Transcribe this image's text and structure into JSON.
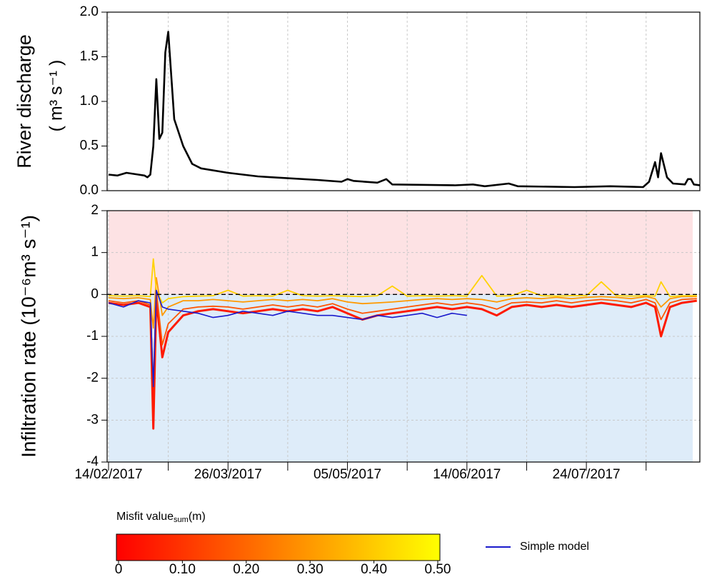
{
  "chart_data": [
    {
      "type": "line",
      "ylabel": "River discharge",
      "yunit": "( m³ s⁻¹ )",
      "x": [
        "2017-02-14",
        "2017-02-17",
        "2017-02-20",
        "2017-02-24",
        "2017-02-26",
        "2017-02-27",
        "2017-02-28",
        "2017-03-01",
        "2017-03-02",
        "2017-03-03",
        "2017-03-04",
        "2017-03-05",
        "2017-03-06",
        "2017-03-08",
        "2017-03-11",
        "2017-03-14",
        "2017-03-17",
        "2017-03-26",
        "2017-04-05",
        "2017-04-10",
        "2017-04-25",
        "2017-05-03",
        "2017-05-05",
        "2017-05-07",
        "2017-05-15",
        "2017-05-18",
        "2017-05-20",
        "2017-06-10",
        "2017-06-16",
        "2017-06-20",
        "2017-06-28",
        "2017-07-01",
        "2017-07-20",
        "2017-08-01",
        "2017-08-12",
        "2017-08-14",
        "2017-08-16",
        "2017-08-17",
        "2017-08-18",
        "2017-08-20",
        "2017-08-22",
        "2017-08-26",
        "2017-08-27",
        "2017-08-28",
        "2017-08-29",
        "2017-08-31"
      ],
      "series": [
        {
          "color": "#000000",
          "values": [
            0.18,
            0.17,
            0.2,
            0.18,
            0.17,
            0.15,
            0.18,
            0.5,
            1.25,
            0.58,
            0.65,
            1.55,
            1.78,
            0.8,
            0.5,
            0.3,
            0.25,
            0.2,
            0.16,
            0.15,
            0.12,
            0.1,
            0.13,
            0.11,
            0.09,
            0.13,
            0.07,
            0.06,
            0.07,
            0.05,
            0.08,
            0.05,
            0.04,
            0.05,
            0.04,
            0.1,
            0.32,
            0.15,
            0.42,
            0.15,
            0.08,
            0.07,
            0.13,
            0.13,
            0.07,
            0.06
          ]
        }
      ],
      "xlim": [
        "2017-02-14",
        "2017-08-31"
      ],
      "xticks": [
        {
          "value": "2017-02-14",
          "label": null
        },
        {
          "value": "2017-03-06",
          "label": null
        },
        {
          "value": "2017-03-26",
          "label": null
        },
        {
          "value": "2017-04-15",
          "label": null
        },
        {
          "value": "2017-05-05",
          "label": null
        },
        {
          "value": "2017-05-25",
          "label": null
        },
        {
          "value": "2017-06-14",
          "label": null
        },
        {
          "value": "2017-07-04",
          "label": null
        },
        {
          "value": "2017-07-24",
          "label": null
        },
        {
          "value": "2017-08-13",
          "label": null
        }
      ],
      "ylim": [
        0,
        2
      ],
      "yticks": [
        {
          "value": 0,
          "label": "0.0"
        },
        {
          "value": 0.5,
          "label": "0.5"
        },
        {
          "value": 1,
          "label": "1.0"
        },
        {
          "value": 1.5,
          "label": "1.5"
        },
        {
          "value": 2,
          "label": "2.0"
        }
      ],
      "grid": "x"
    },
    {
      "type": "line",
      "ylabel": "Infiltration rate (10⁻⁶m³ s⁻¹)",
      "x": [
        "2017-02-14",
        "2017-02-19",
        "2017-02-24",
        "2017-02-28",
        "2017-03-01",
        "2017-03-02",
        "2017-03-04",
        "2017-03-06",
        "2017-03-11",
        "2017-03-16",
        "2017-03-21",
        "2017-03-26",
        "2017-03-31",
        "2017-04-05",
        "2017-04-10",
        "2017-04-15",
        "2017-04-20",
        "2017-04-25",
        "2017-04-30",
        "2017-05-05",
        "2017-05-10",
        "2017-05-15",
        "2017-05-20",
        "2017-05-25",
        "2017-05-30",
        "2017-06-04",
        "2017-06-09",
        "2017-06-14",
        "2017-06-19",
        "2017-06-24",
        "2017-06-29",
        "2017-07-04",
        "2017-07-09",
        "2017-07-14",
        "2017-07-19",
        "2017-07-24",
        "2017-07-29",
        "2017-08-03",
        "2017-08-08",
        "2017-08-13",
        "2017-08-16",
        "2017-08-18",
        "2017-08-21",
        "2017-08-25",
        "2017-08-30"
      ],
      "series": [
        {
          "color": "#ff1a00",
          "values": [
            -0.2,
            -0.25,
            -0.2,
            -0.3,
            -3.2,
            -0.1,
            -1.5,
            -0.9,
            -0.5,
            -0.4,
            -0.35,
            -0.4,
            -0.45,
            -0.4,
            -0.35,
            -0.4,
            -0.35,
            -0.4,
            -0.3,
            -0.45,
            -0.6,
            -0.5,
            -0.45,
            -0.4,
            -0.35,
            -0.3,
            -0.35,
            -0.3,
            -0.35,
            -0.5,
            -0.3,
            -0.25,
            -0.3,
            -0.25,
            -0.3,
            -0.25,
            -0.2,
            -0.25,
            -0.3,
            -0.2,
            -0.3,
            -1.0,
            -0.3,
            -0.2,
            -0.15
          ]
        },
        {
          "color": "#ff5500",
          "values": [
            -0.15,
            -0.2,
            -0.15,
            -0.25,
            -2.2,
            0.1,
            -1.2,
            -0.7,
            -0.35,
            -0.3,
            -0.28,
            -0.3,
            -0.35,
            -0.3,
            -0.25,
            -0.3,
            -0.25,
            -0.3,
            -0.22,
            -0.35,
            -0.45,
            -0.4,
            -0.35,
            -0.3,
            -0.25,
            -0.2,
            -0.25,
            -0.2,
            -0.25,
            -0.35,
            -0.2,
            -0.18,
            -0.2,
            -0.15,
            -0.2,
            -0.15,
            -0.12,
            -0.15,
            -0.2,
            -0.12,
            -0.2,
            -0.6,
            -0.2,
            -0.12,
            -0.1
          ]
        },
        {
          "color": "#ff9900",
          "values": [
            -0.08,
            -0.1,
            -0.08,
            -0.12,
            -0.8,
            0.4,
            -0.5,
            -0.3,
            -0.15,
            -0.15,
            -0.12,
            -0.15,
            -0.18,
            -0.15,
            -0.12,
            -0.15,
            -0.12,
            -0.15,
            -0.1,
            -0.18,
            -0.22,
            -0.2,
            -0.18,
            -0.15,
            -0.12,
            -0.1,
            -0.12,
            -0.1,
            -0.12,
            -0.18,
            -0.1,
            -0.08,
            -0.1,
            -0.07,
            -0.1,
            -0.07,
            -0.05,
            -0.07,
            -0.1,
            -0.05,
            -0.1,
            -0.3,
            -0.1,
            -0.05,
            -0.05
          ]
        },
        {
          "color": "#ffd200",
          "values": [
            -0.03,
            -0.04,
            -0.03,
            -0.05,
            0.85,
            0.1,
            -0.2,
            -0.1,
            -0.05,
            -0.04,
            -0.03,
            0.1,
            -0.04,
            -0.03,
            -0.04,
            0.1,
            -0.03,
            -0.04,
            -0.03,
            -0.04,
            -0.05,
            -0.03,
            0.2,
            -0.04,
            -0.03,
            -0.04,
            -0.03,
            -0.04,
            0.45,
            -0.04,
            -0.03,
            0.1,
            -0.03,
            -0.04,
            -0.03,
            -0.03,
            0.3,
            -0.03,
            -0.04,
            -0.03,
            -0.04,
            0.3,
            -0.05,
            -0.03,
            -0.03
          ]
        },
        {
          "name": "Simple model",
          "color": "#1a1acc",
          "values": [
            -0.2,
            -0.3,
            -0.15,
            -0.2,
            -2.2,
            0.1,
            -0.3,
            -0.35,
            -0.4,
            -0.45,
            -0.55,
            -0.5,
            -0.4,
            -0.45,
            -0.5,
            -0.4,
            -0.45,
            -0.5,
            -0.5,
            -0.55,
            -0.6,
            -0.5,
            -0.55,
            -0.5,
            -0.45,
            -0.55,
            -0.45,
            -0.5,
            null,
            null,
            null,
            null,
            null,
            null,
            null,
            null,
            null,
            null,
            null,
            null,
            null,
            null,
            null,
            null,
            null
          ]
        }
      ],
      "xlim": [
        "2017-02-14",
        "2017-08-31"
      ],
      "xticks": [
        {
          "value": "2017-02-14",
          "label": "14/02/2017"
        },
        {
          "value": "2017-03-06",
          "label": null
        },
        {
          "value": "2017-03-26",
          "label": "26/03/2017"
        },
        {
          "value": "2017-04-15",
          "label": null
        },
        {
          "value": "2017-05-05",
          "label": "05/05/2017"
        },
        {
          "value": "2017-05-25",
          "label": null
        },
        {
          "value": "2017-06-14",
          "label": "14/06/2017"
        },
        {
          "value": "2017-07-04",
          "label": null
        },
        {
          "value": "2017-07-24",
          "label": "24/07/2017"
        },
        {
          "value": "2017-08-13",
          "label": null
        }
      ],
      "ylim": [
        -4,
        2
      ],
      "yticks": [
        -4,
        -3,
        -2,
        -1,
        0,
        1,
        2
      ],
      "grid": "both",
      "shading": {
        "positive": "#fde2e4",
        "negative": "#deecf9"
      },
      "zero_line": true,
      "colorbar": {
        "title": "Misfit value",
        "title_sub": "sum",
        "title_unit": "(m)",
        "range": [
          0,
          0.5
        ],
        "colors": [
          "#ff0000",
          "#ffff00"
        ],
        "ticks": [
          0,
          {
            "value": 0.1,
            "label": "0.10"
          },
          {
            "value": 0.2,
            "label": "0.20"
          },
          {
            "value": 0.3,
            "label": "0.30"
          },
          {
            "value": 0.4,
            "label": "0.40"
          },
          {
            "value": 0.5,
            "label": "0.50"
          }
        ]
      }
    }
  ]
}
